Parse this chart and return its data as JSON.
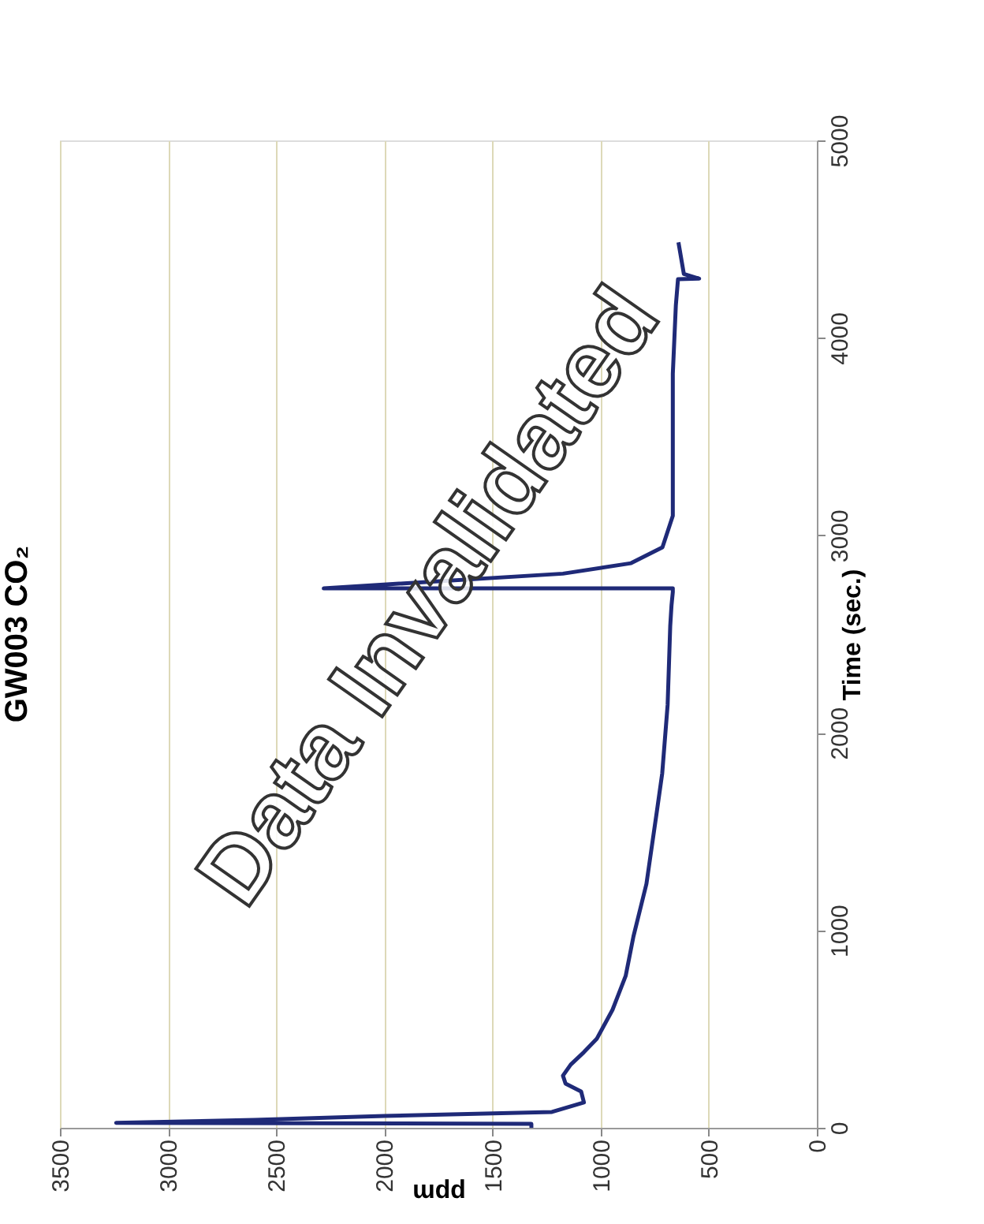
{
  "chart_data": {
    "type": "line",
    "title": "GW003 CO₂",
    "xlabel": "ppm",
    "ylabel": "Time (sec.)",
    "annotations": [
      "Data Invalidated"
    ],
    "series": [
      {
        "color": "#1f2a78",
        "x": [
          1320,
          1320,
          3240,
          2600,
          2000,
          1225,
          1077,
          1090,
          1162,
          1174,
          1138,
          1077,
          1018,
          945,
          884,
          848,
          788,
          739,
          715,
          690,
          678,
          672,
          666,
          666,
          2280,
          1174,
          859,
          714,
          666,
          666,
          666,
          666,
          652,
          642,
          544,
          615,
          640
        ],
        "values": [
          0,
          20,
          25,
          40,
          60,
          80,
          128,
          184,
          224,
          264,
          320,
          383,
          450,
          597,
          769,
          969,
          1235,
          1608,
          1795,
          2141,
          2540,
          2646,
          2713,
          2732,
          2732,
          2806,
          2859,
          2939,
          3099,
          3235,
          3738,
          3818,
          4164,
          4297,
          4300,
          4324,
          4484
        ]
      }
    ],
    "xlim": [
      3500,
      0
    ],
    "xticks": [
      0,
      500,
      1000,
      1500,
      2000,
      2500,
      3000,
      3500
    ],
    "ylim": [
      0,
      5000
    ],
    "yticks": [
      0,
      1000,
      2000,
      3000,
      4000,
      5000
    ],
    "grid": "x",
    "legend": false,
    "marker": "none",
    "line_style": "solid"
  }
}
